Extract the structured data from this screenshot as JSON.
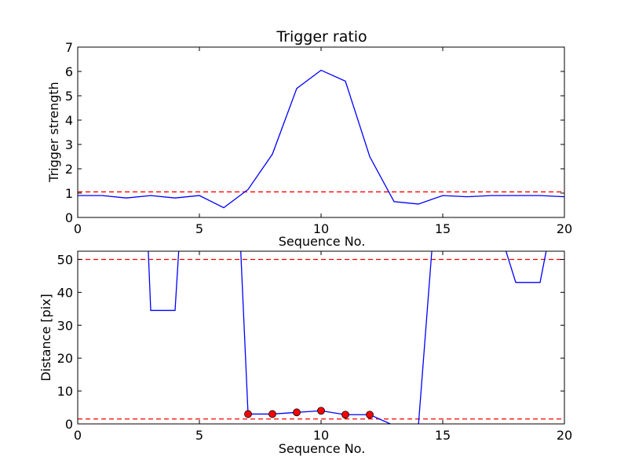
{
  "colors": {
    "series": "#0000ff",
    "threshold": "#ff0000",
    "marker": "#ff0000"
  },
  "chart_data": [
    {
      "type": "line",
      "title": "Trigger ratio",
      "xlabel": "Sequence No.",
      "ylabel": "Trigger strength",
      "xlim": [
        0,
        20
      ],
      "ylim": [
        0,
        7
      ],
      "xticks": [
        0,
        5,
        10,
        15,
        20
      ],
      "yticks": [
        0,
        1,
        2,
        3,
        4,
        5,
        6,
        7
      ],
      "grid": false,
      "series": [
        {
          "x": [
            0,
            1,
            2,
            3,
            4,
            5,
            6,
            7,
            8,
            9,
            10,
            11,
            12,
            13,
            14,
            15,
            16,
            17,
            18,
            19,
            20
          ],
          "values": [
            0.9,
            0.9,
            0.8,
            0.9,
            0.8,
            0.9,
            0.4,
            1.15,
            2.6,
            5.3,
            6.05,
            5.6,
            2.5,
            0.65,
            0.55,
            0.9,
            0.85,
            0.9,
            0.9,
            0.9,
            0.85
          ]
        }
      ],
      "thresholds": [
        1.05
      ]
    },
    {
      "type": "line",
      "title": "",
      "xlabel": "Sequence No.",
      "ylabel": "Distance [pix]",
      "xlim": [
        0,
        20
      ],
      "ylim": [
        0,
        52.5
      ],
      "xticks": [
        0,
        5,
        10,
        15,
        20
      ],
      "yticks": [
        0,
        10,
        20,
        30,
        40,
        50
      ],
      "grid": false,
      "series": [
        {
          "x": [
            2.9,
            3,
            4,
            4.15
          ],
          "values": [
            52.5,
            34.5,
            34.5,
            52.5
          ]
        },
        {
          "x": [
            6.7,
            7,
            8,
            9,
            10,
            11,
            12,
            13,
            14,
            14.55
          ],
          "values": [
            52.5,
            3,
            3,
            3.5,
            4,
            2.8,
            2.8,
            -0.5,
            -0.5,
            52.5
          ]
        },
        {
          "x": [
            17.6,
            18,
            19,
            19.25
          ],
          "values": [
            52.5,
            43,
            43,
            52.5
          ]
        }
      ],
      "markers": {
        "x": [
          7,
          8,
          9,
          10,
          11,
          12
        ],
        "values": [
          3,
          3,
          3.5,
          4,
          2.8,
          2.8
        ]
      },
      "thresholds": [
        50,
        1.5
      ]
    }
  ]
}
